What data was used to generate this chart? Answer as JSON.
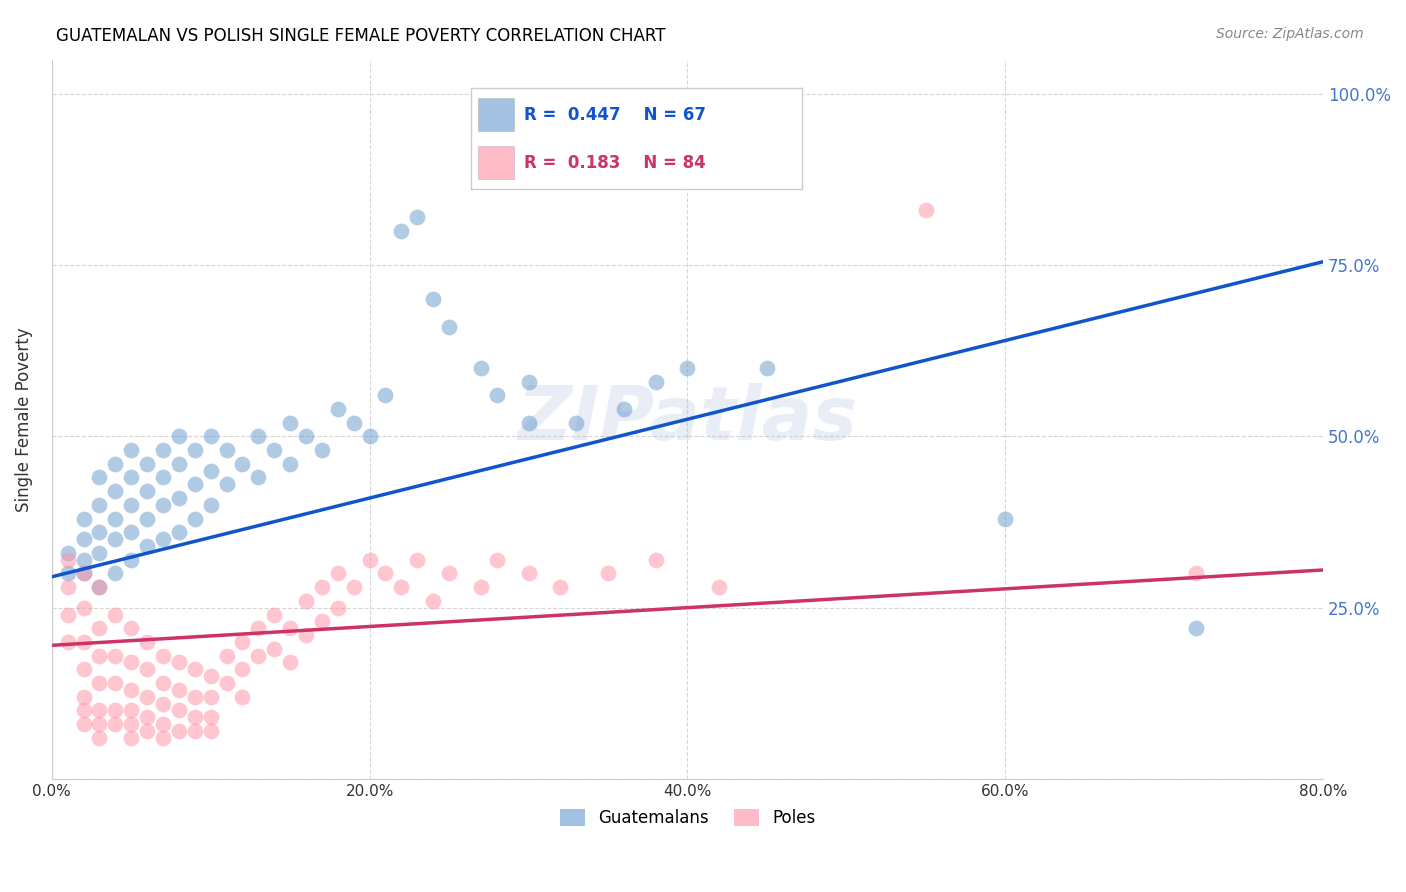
{
  "title": "GUATEMALAN VS POLISH SINGLE FEMALE POVERTY CORRELATION CHART",
  "source": "Source: ZipAtlas.com",
  "ylabel_label": "Single Female Poverty",
  "x_min": 0.0,
  "x_max": 0.8,
  "y_min": 0.0,
  "y_max": 1.05,
  "guatemalan_color": "#6699cc",
  "polish_color": "#ff8fa3",
  "guatemalan_line_color": "#1155cc",
  "polish_line_color": "#cc3366",
  "legend_R1": "0.447",
  "legend_N1": "67",
  "legend_R2": "0.183",
  "legend_N2": "84",
  "watermark": "ZIPatlas",
  "guatemalan_points": [
    [
      0.01,
      0.3
    ],
    [
      0.01,
      0.33
    ],
    [
      0.02,
      0.3
    ],
    [
      0.02,
      0.35
    ],
    [
      0.02,
      0.38
    ],
    [
      0.02,
      0.32
    ],
    [
      0.03,
      0.28
    ],
    [
      0.03,
      0.33
    ],
    [
      0.03,
      0.36
    ],
    [
      0.03,
      0.4
    ],
    [
      0.03,
      0.44
    ],
    [
      0.04,
      0.3
    ],
    [
      0.04,
      0.35
    ],
    [
      0.04,
      0.38
    ],
    [
      0.04,
      0.42
    ],
    [
      0.04,
      0.46
    ],
    [
      0.05,
      0.32
    ],
    [
      0.05,
      0.36
    ],
    [
      0.05,
      0.4
    ],
    [
      0.05,
      0.44
    ],
    [
      0.05,
      0.48
    ],
    [
      0.06,
      0.34
    ],
    [
      0.06,
      0.38
    ],
    [
      0.06,
      0.42
    ],
    [
      0.06,
      0.46
    ],
    [
      0.07,
      0.35
    ],
    [
      0.07,
      0.4
    ],
    [
      0.07,
      0.44
    ],
    [
      0.07,
      0.48
    ],
    [
      0.08,
      0.36
    ],
    [
      0.08,
      0.41
    ],
    [
      0.08,
      0.46
    ],
    [
      0.08,
      0.5
    ],
    [
      0.09,
      0.38
    ],
    [
      0.09,
      0.43
    ],
    [
      0.09,
      0.48
    ],
    [
      0.1,
      0.4
    ],
    [
      0.1,
      0.45
    ],
    [
      0.1,
      0.5
    ],
    [
      0.11,
      0.43
    ],
    [
      0.11,
      0.48
    ],
    [
      0.12,
      0.46
    ],
    [
      0.13,
      0.44
    ],
    [
      0.13,
      0.5
    ],
    [
      0.14,
      0.48
    ],
    [
      0.15,
      0.46
    ],
    [
      0.15,
      0.52
    ],
    [
      0.16,
      0.5
    ],
    [
      0.17,
      0.48
    ],
    [
      0.18,
      0.54
    ],
    [
      0.19,
      0.52
    ],
    [
      0.2,
      0.5
    ],
    [
      0.21,
      0.56
    ],
    [
      0.22,
      0.8
    ],
    [
      0.23,
      0.82
    ],
    [
      0.24,
      0.7
    ],
    [
      0.25,
      0.66
    ],
    [
      0.27,
      0.6
    ],
    [
      0.28,
      0.56
    ],
    [
      0.3,
      0.52
    ],
    [
      0.3,
      0.58
    ],
    [
      0.33,
      0.52
    ],
    [
      0.36,
      0.54
    ],
    [
      0.38,
      0.58
    ],
    [
      0.4,
      0.6
    ],
    [
      0.45,
      0.6
    ],
    [
      0.6,
      0.38
    ],
    [
      0.72,
      0.22
    ]
  ],
  "polish_points": [
    [
      0.01,
      0.32
    ],
    [
      0.01,
      0.28
    ],
    [
      0.01,
      0.24
    ],
    [
      0.01,
      0.2
    ],
    [
      0.02,
      0.3
    ],
    [
      0.02,
      0.25
    ],
    [
      0.02,
      0.2
    ],
    [
      0.02,
      0.16
    ],
    [
      0.02,
      0.12
    ],
    [
      0.02,
      0.1
    ],
    [
      0.02,
      0.08
    ],
    [
      0.03,
      0.28
    ],
    [
      0.03,
      0.22
    ],
    [
      0.03,
      0.18
    ],
    [
      0.03,
      0.14
    ],
    [
      0.03,
      0.1
    ],
    [
      0.03,
      0.08
    ],
    [
      0.03,
      0.06
    ],
    [
      0.04,
      0.24
    ],
    [
      0.04,
      0.18
    ],
    [
      0.04,
      0.14
    ],
    [
      0.04,
      0.1
    ],
    [
      0.04,
      0.08
    ],
    [
      0.05,
      0.22
    ],
    [
      0.05,
      0.17
    ],
    [
      0.05,
      0.13
    ],
    [
      0.05,
      0.1
    ],
    [
      0.05,
      0.08
    ],
    [
      0.05,
      0.06
    ],
    [
      0.06,
      0.2
    ],
    [
      0.06,
      0.16
    ],
    [
      0.06,
      0.12
    ],
    [
      0.06,
      0.09
    ],
    [
      0.06,
      0.07
    ],
    [
      0.07,
      0.18
    ],
    [
      0.07,
      0.14
    ],
    [
      0.07,
      0.11
    ],
    [
      0.07,
      0.08
    ],
    [
      0.07,
      0.06
    ],
    [
      0.08,
      0.17
    ],
    [
      0.08,
      0.13
    ],
    [
      0.08,
      0.1
    ],
    [
      0.08,
      0.07
    ],
    [
      0.09,
      0.16
    ],
    [
      0.09,
      0.12
    ],
    [
      0.09,
      0.09
    ],
    [
      0.09,
      0.07
    ],
    [
      0.1,
      0.15
    ],
    [
      0.1,
      0.12
    ],
    [
      0.1,
      0.09
    ],
    [
      0.1,
      0.07
    ],
    [
      0.11,
      0.18
    ],
    [
      0.11,
      0.14
    ],
    [
      0.12,
      0.2
    ],
    [
      0.12,
      0.16
    ],
    [
      0.12,
      0.12
    ],
    [
      0.13,
      0.22
    ],
    [
      0.13,
      0.18
    ],
    [
      0.14,
      0.24
    ],
    [
      0.14,
      0.19
    ],
    [
      0.15,
      0.22
    ],
    [
      0.15,
      0.17
    ],
    [
      0.16,
      0.26
    ],
    [
      0.16,
      0.21
    ],
    [
      0.17,
      0.28
    ],
    [
      0.17,
      0.23
    ],
    [
      0.18,
      0.3
    ],
    [
      0.18,
      0.25
    ],
    [
      0.19,
      0.28
    ],
    [
      0.2,
      0.32
    ],
    [
      0.21,
      0.3
    ],
    [
      0.22,
      0.28
    ],
    [
      0.23,
      0.32
    ],
    [
      0.24,
      0.26
    ],
    [
      0.25,
      0.3
    ],
    [
      0.27,
      0.28
    ],
    [
      0.28,
      0.32
    ],
    [
      0.3,
      0.3
    ],
    [
      0.32,
      0.28
    ],
    [
      0.35,
      0.3
    ],
    [
      0.38,
      0.32
    ],
    [
      0.42,
      0.28
    ],
    [
      0.55,
      0.83
    ],
    [
      0.72,
      0.3
    ]
  ]
}
